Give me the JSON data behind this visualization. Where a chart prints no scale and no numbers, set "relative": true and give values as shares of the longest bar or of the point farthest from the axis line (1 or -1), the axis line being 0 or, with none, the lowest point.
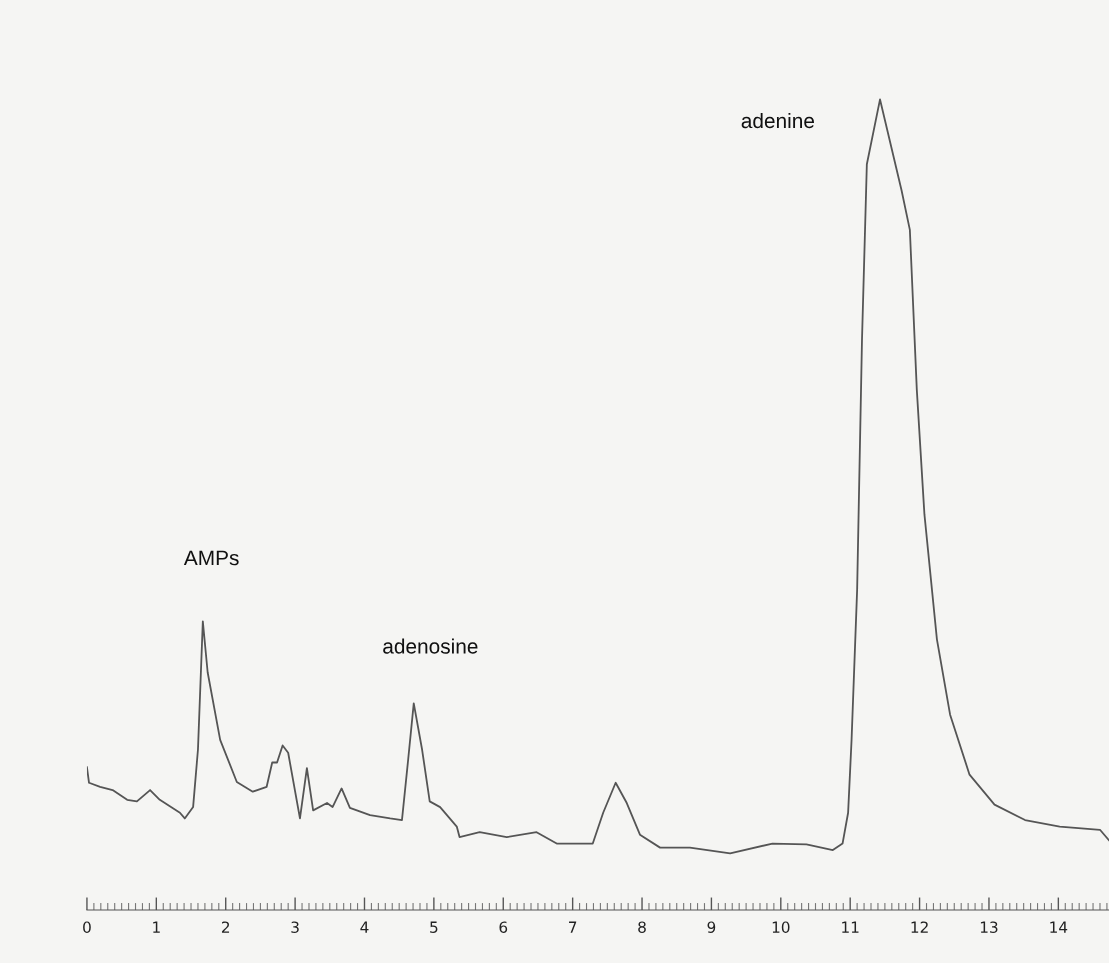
{
  "chart_data": {
    "type": "line",
    "relative": true,
    "color": "#555555",
    "x": [
      0.0,
      0.03,
      0.19,
      0.37,
      0.58,
      0.72,
      0.91,
      1.05,
      1.34,
      1.41,
      1.53,
      1.6,
      1.67,
      1.74,
      1.92,
      2.16,
      2.39,
      2.59,
      2.67,
      2.74,
      2.82,
      2.9,
      3.07,
      3.17,
      3.26,
      3.46,
      3.54,
      3.67,
      3.79,
      4.08,
      4.37,
      4.54,
      4.63,
      4.71,
      4.83,
      4.94,
      5.09,
      5.33,
      5.37,
      5.66,
      6.05,
      6.48,
      6.77,
      7.29,
      7.44,
      7.62,
      7.78,
      7.97,
      8.26,
      8.69,
      9.27,
      9.88,
      10.37,
      10.75,
      10.89,
      10.97,
      11.02,
      11.1,
      11.17,
      11.24,
      11.43,
      11.74,
      11.86,
      11.96,
      12.07,
      12.25,
      12.44,
      12.72,
      13.08,
      13.52,
      14.02,
      14.6,
      14.73
    ],
    "values": [
      0.176,
      0.157,
      0.152,
      0.148,
      0.136,
      0.134,
      0.148,
      0.136,
      0.12,
      0.113,
      0.127,
      0.198,
      0.356,
      0.293,
      0.21,
      0.158,
      0.146,
      0.152,
      0.182,
      0.182,
      0.203,
      0.194,
      0.113,
      0.175,
      0.123,
      0.132,
      0.127,
      0.15,
      0.126,
      0.117,
      0.113,
      0.111,
      0.186,
      0.255,
      0.198,
      0.134,
      0.127,
      0.103,
      0.09,
      0.096,
      0.09,
      0.096,
      0.082,
      0.082,
      0.12,
      0.157,
      0.132,
      0.093,
      0.077,
      0.077,
      0.07,
      0.082,
      0.081,
      0.074,
      0.082,
      0.12,
      0.21,
      0.395,
      0.703,
      0.92,
      1.0,
      0.888,
      0.839,
      0.642,
      0.488,
      0.334,
      0.241,
      0.167,
      0.13,
      0.111,
      0.103,
      0.099,
      0.086
    ],
    "xlim": [
      0,
      14.73
    ],
    "xticks": [
      0,
      1,
      2,
      3,
      4,
      5,
      6,
      7,
      8,
      9,
      10,
      11,
      12,
      13,
      14
    ],
    "grid": false,
    "legend": false,
    "marker": "none",
    "line_style": "solid",
    "annotations": [
      "AMPs",
      "adenosine",
      "adenine"
    ]
  }
}
